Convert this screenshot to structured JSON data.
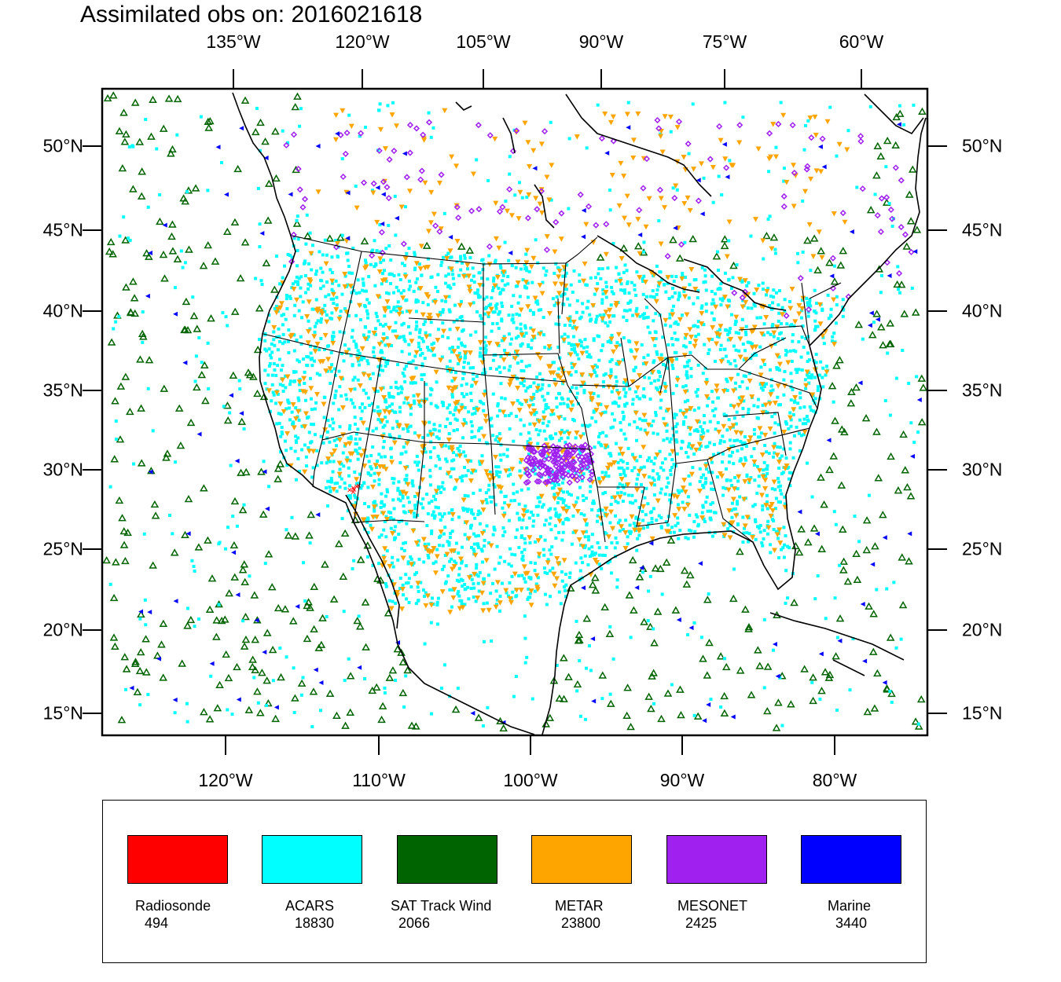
{
  "title": "Assimilated obs on: 2016021618",
  "top_lon_labels": [
    "135°W",
    "120°W",
    "105°W",
    "90°W",
    "75°W",
    "60°W"
  ],
  "bottom_lon_labels": [
    "120°W",
    "110°W",
    "100°W",
    "90°W",
    "80°W"
  ],
  "lat_labels": [
    "50°N",
    "45°N",
    "40°N",
    "35°N",
    "30°N",
    "25°N",
    "20°N",
    "15°N"
  ],
  "legend": [
    {
      "name": "Radiosonde",
      "count": "494",
      "color": "#ff0000"
    },
    {
      "name": "ACARS",
      "count": "18830",
      "color": "#00ffff"
    },
    {
      "name": "SAT Track Wind",
      "count": "2066",
      "color": "#006400"
    },
    {
      "name": "METAR",
      "count": "23800",
      "color": "#ffa500"
    },
    {
      "name": "MESONET",
      "count": "2425",
      "color": "#a020f0"
    },
    {
      "name": "Marine",
      "count": "3440",
      "color": "#0000ff"
    }
  ]
}
